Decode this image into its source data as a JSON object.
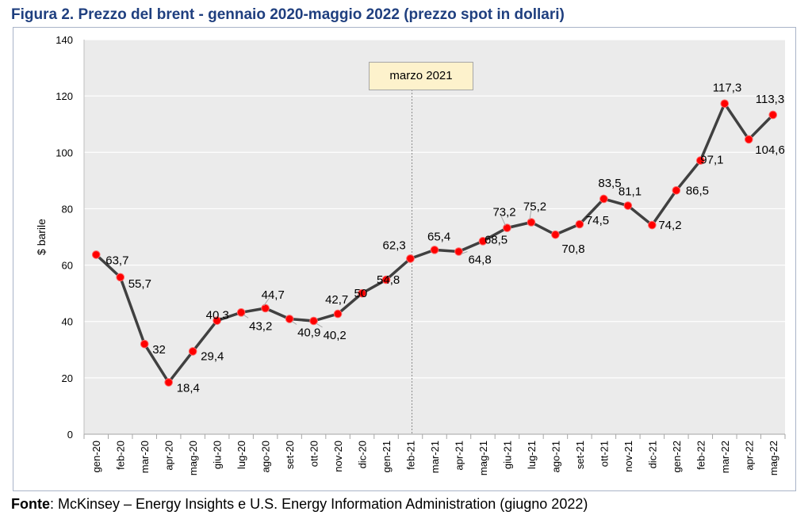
{
  "title": "Figura 2. Prezzo del brent - gennaio 2020-maggio 2022 (prezzo spot in dollari)",
  "source": {
    "label": "Fonte",
    "text": ": McKinsey – Energy Insights e U.S. Energy Information Administration (giugno 2022)"
  },
  "colors": {
    "title": "#1f3f7f",
    "line": "#404040",
    "marker": "#ff0000",
    "plot_bg": "#ebebeb",
    "grid": "#ffffff",
    "annotation_bg": "#fdf2cc"
  },
  "chart_data": {
    "type": "line",
    "title": "Figura 2. Prezzo del brent - gennaio 2020-maggio 2022 (prezzo spot in dollari)",
    "xlabel": "",
    "ylabel": "$ barile",
    "ylim": [
      0,
      140
    ],
    "yticks": [
      0,
      20,
      40,
      60,
      80,
      100,
      120,
      140
    ],
    "grid": true,
    "legend": "none",
    "categories": [
      "gen-20",
      "feb-20",
      "mar-20",
      "apr-20",
      "mag-20",
      "giu-20",
      "lug-20",
      "ago-20",
      "set-20",
      "ott-20",
      "nov-20",
      "dic-20",
      "gen-21",
      "feb-21",
      "mar-21",
      "apr-21",
      "mag-21",
      "giu-21",
      "lug-21",
      "ago-21",
      "set-21",
      "ott-21",
      "nov-21",
      "dic-21",
      "gen-22",
      "feb-22",
      "mar-22",
      "apr-22",
      "mag-22"
    ],
    "values": [
      63.7,
      55.7,
      32,
      18.4,
      29.4,
      40.3,
      43.2,
      44.7,
      40.9,
      40.2,
      42.7,
      50,
      54.8,
      62.3,
      65.4,
      64.8,
      68.5,
      73.2,
      75.2,
      70.8,
      74.5,
      83.5,
      81.1,
      74.2,
      86.5,
      97.1,
      117.3,
      104.6,
      113.3
    ],
    "data_labels": [
      "63,7",
      "55,7",
      "32",
      "18,4",
      "29,4",
      "40,3",
      "43,2",
      "44,7",
      "40,9",
      "40,2",
      "42,7",
      "50",
      "54,8",
      "62,3",
      "65,4",
      "64,8",
      "68,5",
      "73,2",
      "75,2",
      "70,8",
      "74,5",
      "83,5",
      "81,1",
      "74,2",
      "86,5",
      "97,1",
      "117,3",
      "104,6",
      "113,3"
    ],
    "annotations": [
      {
        "text": "marzo 2021",
        "at_category": "feb-21"
      }
    ]
  }
}
